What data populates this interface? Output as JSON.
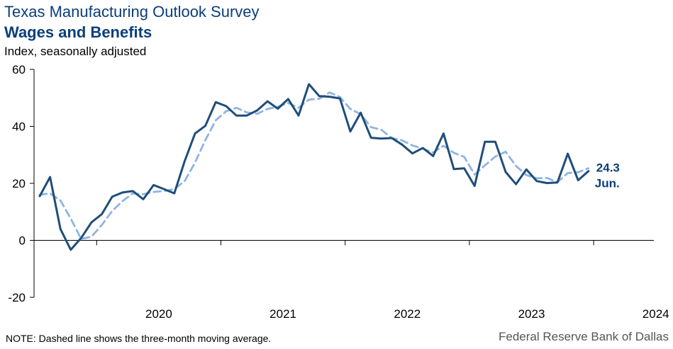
{
  "header": {
    "title": "Texas Manufacturing Outlook Survey",
    "subtitle": "Wages and Benefits",
    "units": "Index, seasonally adjusted"
  },
  "footer": {
    "note": "NOTE: Dashed line shows the three-month moving average.",
    "source": "Federal Reserve Bank of Dallas"
  },
  "colors": {
    "series": "#1f4e79",
    "average": "#8fb4e3",
    "text": "#0b3f7a"
  },
  "chart_data": {
    "type": "line",
    "title": "Wages and Benefits",
    "ylabel": "Index, seasonally adjusted",
    "ylim": [
      -20,
      60
    ],
    "yticks": [
      -20,
      0,
      20,
      40,
      60
    ],
    "year_labels": [
      "2020",
      "2021",
      "2022",
      "2023",
      "2024"
    ],
    "x_start": "2019-07",
    "end_label": {
      "value": "24.3",
      "month": "Jun."
    },
    "series": [
      {
        "name": "Index",
        "style": "solid",
        "values": [
          15.5,
          22.2,
          4.0,
          -3.3,
          0.8,
          6.3,
          9.2,
          15.3,
          16.8,
          17.3,
          14.4,
          19.4,
          18.0,
          16.5,
          27.8,
          37.5,
          40.2,
          48.5,
          47.1,
          43.8,
          43.8,
          45.6,
          48.8,
          46.2,
          49.6,
          43.8,
          54.8,
          50.6,
          50.4,
          49.8,
          38.2,
          44.8,
          36.0,
          35.7,
          35.9,
          33.6,
          30.5,
          32.4,
          29.6,
          37.5,
          25.0,
          25.3,
          19.1,
          34.6,
          34.6,
          24.0,
          19.7,
          24.9,
          20.8,
          20.1,
          20.3,
          30.4,
          21.1,
          24.3
        ]
      },
      {
        "name": "Three-month moving average",
        "style": "dashed",
        "values": [
          16.0,
          16.5,
          14.0,
          7.6,
          0.5,
          1.3,
          5.4,
          10.3,
          13.8,
          16.5,
          16.2,
          17.0,
          17.3,
          18.0,
          20.8,
          27.3,
          35.2,
          42.1,
          45.3,
          46.5,
          44.9,
          44.4,
          46.1,
          46.9,
          48.2,
          46.5,
          49.4,
          49.7,
          51.9,
          50.3,
          46.1,
          44.3,
          39.7,
          38.8,
          35.9,
          35.1,
          33.3,
          32.2,
          30.8,
          33.2,
          30.7,
          29.3,
          23.1,
          26.3,
          29.4,
          31.1,
          26.1,
          22.9,
          21.8,
          21.9,
          20.4,
          23.6,
          23.9,
          25.3
        ]
      }
    ]
  }
}
